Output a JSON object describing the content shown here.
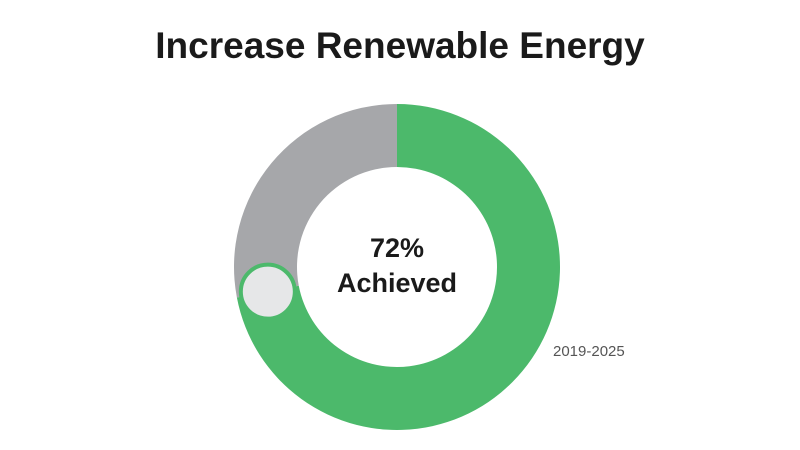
{
  "chart_data": {
    "type": "donut",
    "title": "Increase Renewable Energy",
    "categories": [
      "Achieved",
      null
    ],
    "values": [
      72,
      28
    ],
    "value_labels": [
      "72%",
      null
    ],
    "colors": [
      "#4cb96b",
      "#a6a7aa"
    ],
    "annotation": "2019-2025"
  }
}
